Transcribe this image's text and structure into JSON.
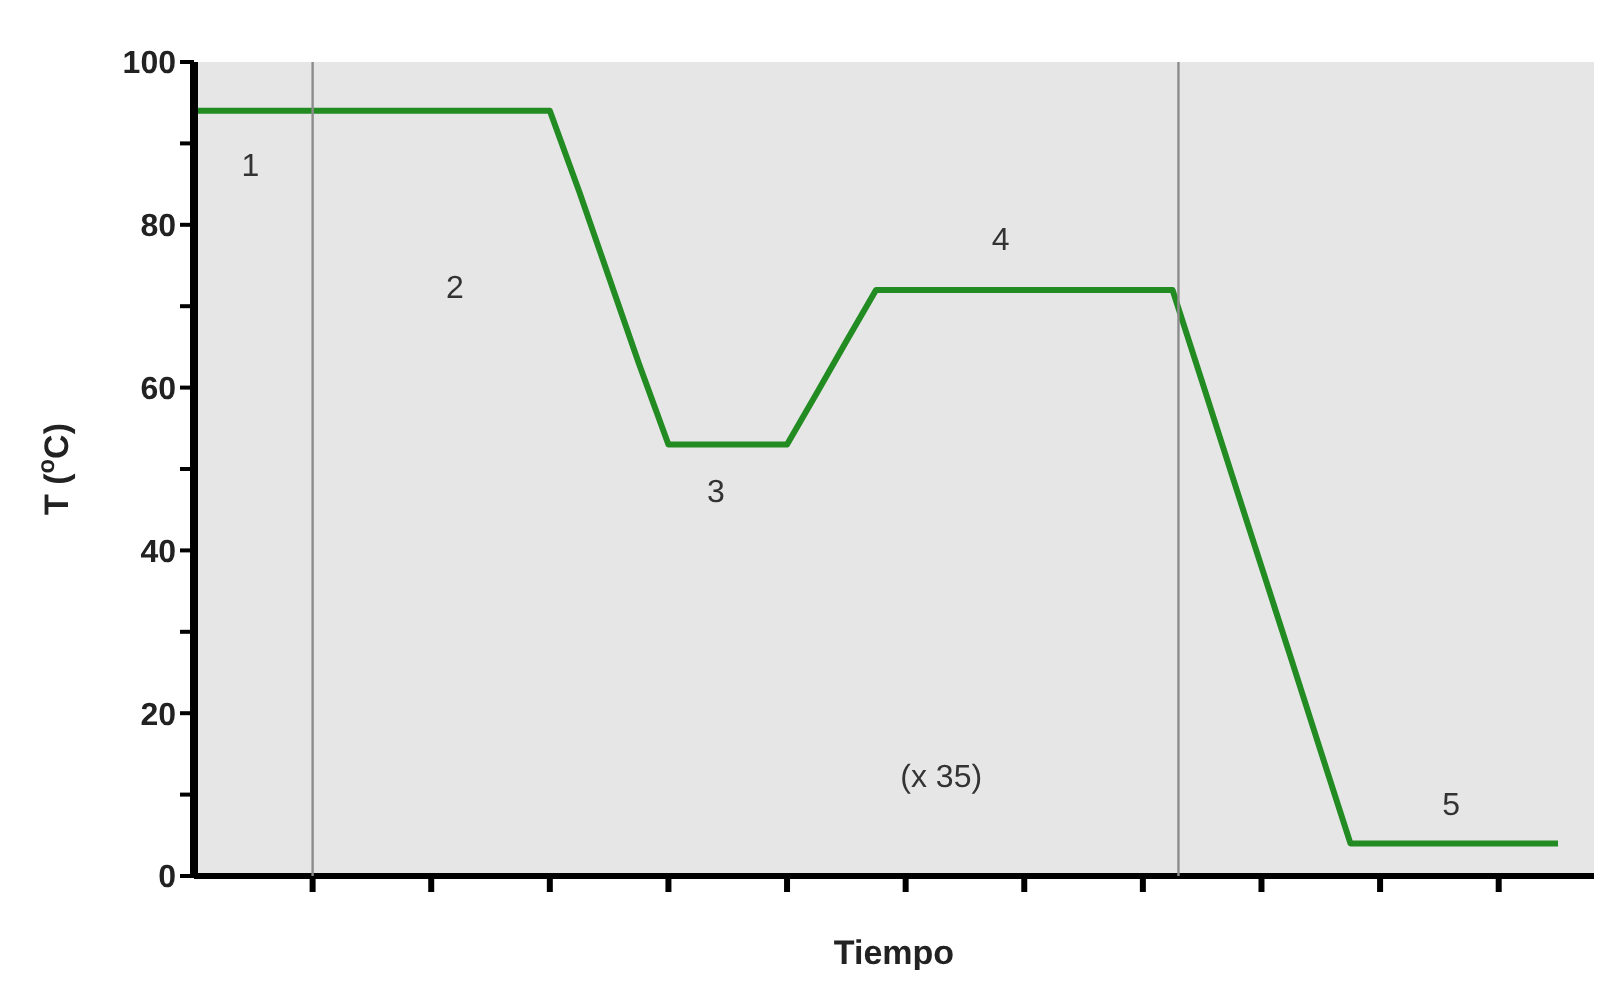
{
  "chart_data": {
    "type": "line",
    "xlabel": "Tiempo",
    "ylabel": "T ($^{o}$C)",
    "categories": [
      null,
      null,
      null,
      null,
      null,
      null,
      null,
      null,
      null,
      null,
      null,
      null,
      null,
      null,
      null,
      null,
      null,
      null,
      null,
      null,
      null,
      null,
      null,
      null,
      null,
      null,
      null,
      null,
      null,
      null,
      null,
      null,
      null,
      null,
      null,
      null,
      null,
      null,
      null,
      null,
      null,
      null,
      null,
      null,
      null,
      null,
      null
    ],
    "series": [
      {
        "color": "#228b22",
        "values": [
          94,
          94,
          94,
          94,
          94,
          94,
          94,
          94,
          94,
          94,
          94,
          94,
          94,
          84,
          73.5,
          63,
          53,
          53,
          53,
          53,
          53,
          59.3,
          65.7,
          72,
          72,
          72,
          72,
          72,
          72,
          72,
          72,
          72,
          72,
          72,
          60.7,
          49.3,
          38,
          26.7,
          15.3,
          4,
          4,
          4,
          4,
          4,
          4,
          4,
          4
        ]
      }
    ],
    "ylim": [
      0,
      100
    ],
    "yticks": [
      0,
      {
        "value": 10,
        "label": null
      },
      20,
      {
        "value": 30,
        "label": null
      },
      40,
      {
        "value": 50,
        "label": null
      },
      60,
      {
        "value": 70,
        "label": null
      },
      80,
      {
        "value": 90,
        "label": null
      },
      100
    ],
    "tick_labels": "y",
    "annotations": [
      "1",
      "2",
      "3",
      "4",
      "(x 35)",
      "5"
    ]
  }
}
